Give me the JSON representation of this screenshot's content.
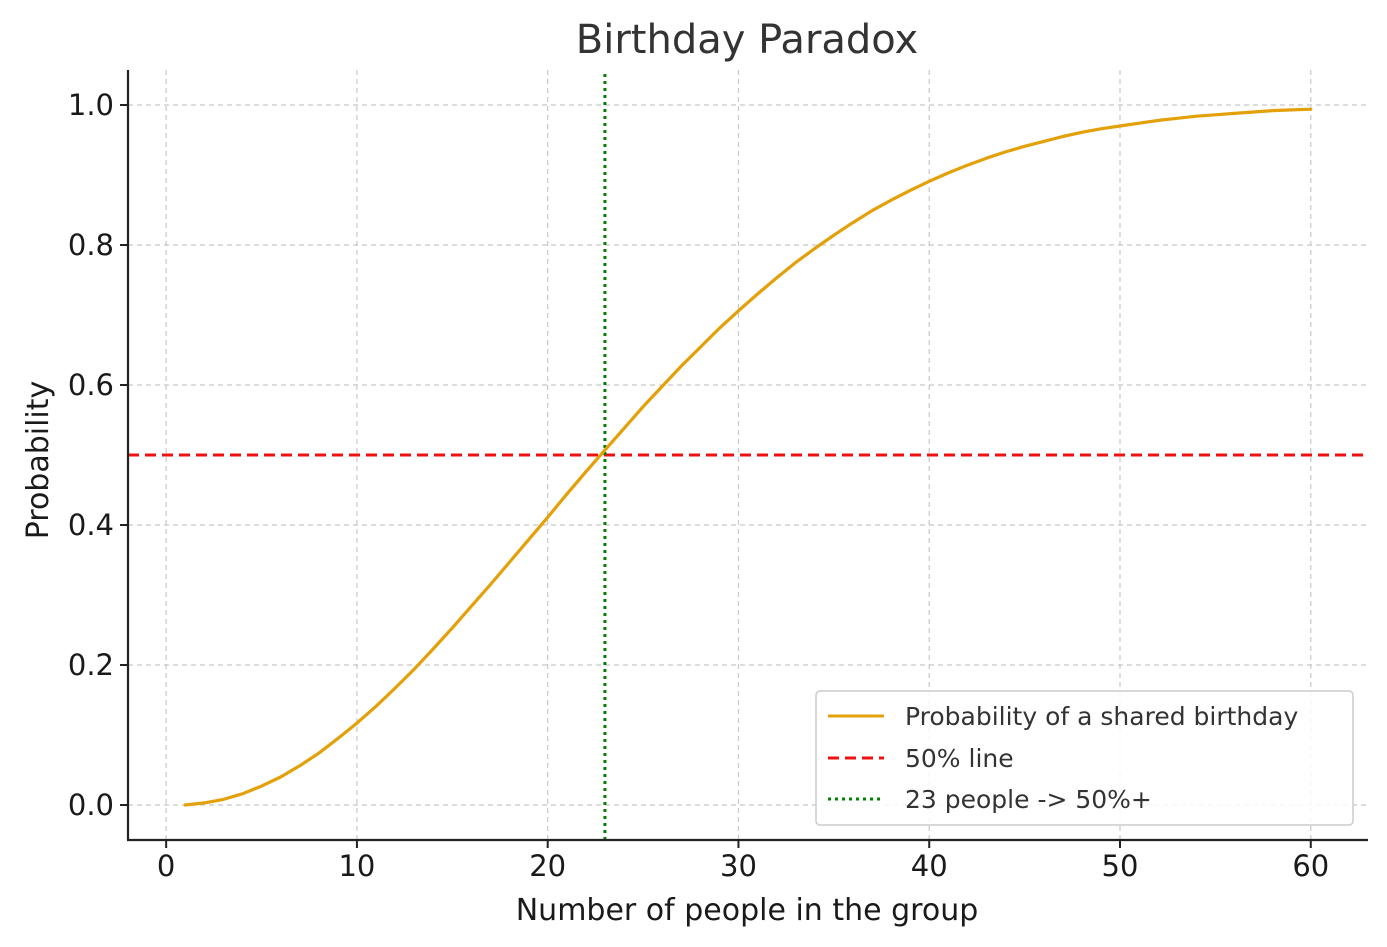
{
  "chart_data": {
    "type": "line",
    "title": "Birthday Paradox",
    "xlabel": "Number of people in the group",
    "ylabel": "Probability",
    "xlim": [
      -2,
      63
    ],
    "ylim": [
      -0.05,
      1.05
    ],
    "xticks": [
      0,
      10,
      20,
      30,
      40,
      50,
      60
    ],
    "yticks": [
      0.0,
      0.2,
      0.4,
      0.6,
      0.8,
      1.0
    ],
    "xtick_labels": [
      "0",
      "10",
      "20",
      "30",
      "40",
      "50",
      "60"
    ],
    "ytick_labels": [
      "0.0",
      "0.2",
      "0.4",
      "0.6",
      "0.8",
      "1.0"
    ],
    "grid": true,
    "legend_position": "lower-right",
    "series": [
      {
        "name": "Probability of a shared birthday",
        "color": "#e3a008",
        "style": "solid",
        "x": [
          1,
          2,
          3,
          4,
          5,
          6,
          7,
          8,
          9,
          10,
          11,
          12,
          13,
          14,
          15,
          16,
          17,
          18,
          19,
          20,
          21,
          22,
          23,
          24,
          25,
          26,
          27,
          28,
          29,
          30,
          31,
          32,
          33,
          34,
          35,
          36,
          37,
          38,
          39,
          40,
          41,
          42,
          43,
          44,
          45,
          46,
          47,
          48,
          49,
          50,
          51,
          52,
          53,
          54,
          55,
          56,
          57,
          58,
          59,
          60
        ],
        "y": [
          0.0,
          0.003,
          0.008,
          0.016,
          0.027,
          0.04,
          0.056,
          0.074,
          0.095,
          0.117,
          0.141,
          0.167,
          0.194,
          0.223,
          0.253,
          0.284,
          0.315,
          0.347,
          0.379,
          0.411,
          0.444,
          0.476,
          0.507,
          0.538,
          0.569,
          0.598,
          0.627,
          0.654,
          0.681,
          0.706,
          0.73,
          0.753,
          0.775,
          0.795,
          0.814,
          0.832,
          0.849,
          0.864,
          0.878,
          0.891,
          0.903,
          0.914,
          0.924,
          0.933,
          0.941,
          0.948,
          0.955,
          0.961,
          0.966,
          0.97,
          0.974,
          0.978,
          0.981,
          0.984,
          0.986,
          0.988,
          0.99,
          0.992,
          0.993,
          0.994
        ]
      },
      {
        "name": "50% line",
        "color": "#ee1111",
        "style": "dashed",
        "orientation": "horizontal",
        "value": 0.5
      },
      {
        "name": "23 people -> 50%+",
        "color": "#008000",
        "style": "dotted",
        "orientation": "vertical",
        "value": 23
      }
    ]
  }
}
